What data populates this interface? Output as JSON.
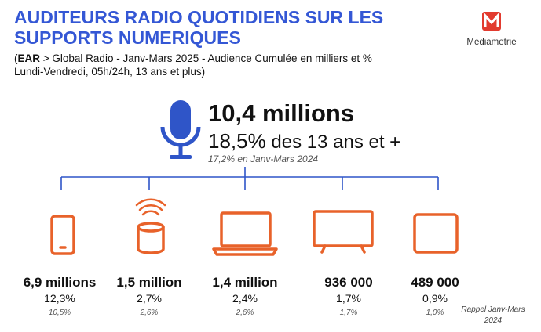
{
  "header": {
    "title_lines": [
      "AUDITEURS RADIO QUOTIDIENS SUR LES",
      "SUPPORTS NUMERIQUES"
    ],
    "subtitle": {
      "open": "(",
      "bold": "EAR",
      "rest": " > Global Radio - Janv-Mars 2025 - Audience Cumulée en milliers et %",
      "line2": "Lundi-Vendredi, 05h/24h, 13 ans et plus)"
    },
    "logo": "Mediametrie"
  },
  "headline": {
    "amount": "10,4 millions",
    "pct": "18,5%",
    "pct_suffix": " des 13 ans et +",
    "previous": "17,2% en Janv-Mars 2024"
  },
  "devices": [
    {
      "amount": "6,9 millions",
      "pct": "12,3%",
      "previous": "10,5%"
    },
    {
      "amount": "1,5 million",
      "pct": "2,7%",
      "previous": "2,6%"
    },
    {
      "amount": "1,4 million",
      "pct": "2,4%",
      "previous": "2,6%"
    },
    {
      "amount": "936 000",
      "pct": "1,7%",
      "previous": "1,7%"
    },
    {
      "amount": "489 000",
      "pct": "0,9%",
      "previous": "1,0%"
    }
  ],
  "footnote": [
    "Rappel Janv-Mars",
    "2024"
  ]
}
